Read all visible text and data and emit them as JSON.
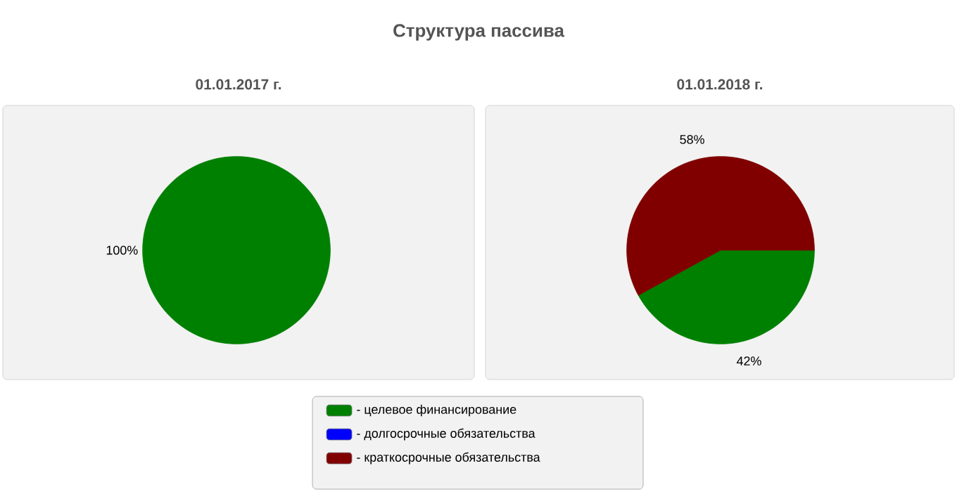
{
  "chart_data": [
    {
      "type": "pie",
      "title": "Структура пассива",
      "subtitle": "01.01.2017 г.",
      "categories": [
        "- целевое финансирование",
        "- долгосрочные обязательства",
        "- краткосрочные обязательства"
      ],
      "values": [
        100,
        0,
        0
      ],
      "colors": [
        "#008000",
        "#0000ff",
        "#800000"
      ],
      "value_labels": [
        "100%",
        null,
        null
      ],
      "legend": "bottom"
    },
    {
      "type": "pie",
      "subtitle": "01.01.2018 г.",
      "categories": [
        null,
        null,
        null
      ],
      "values": [
        42,
        0,
        58
      ],
      "colors": [
        "#008000",
        "#0000ff",
        "#800000"
      ],
      "value_labels": [
        "42%",
        null,
        "58%"
      ]
    }
  ]
}
